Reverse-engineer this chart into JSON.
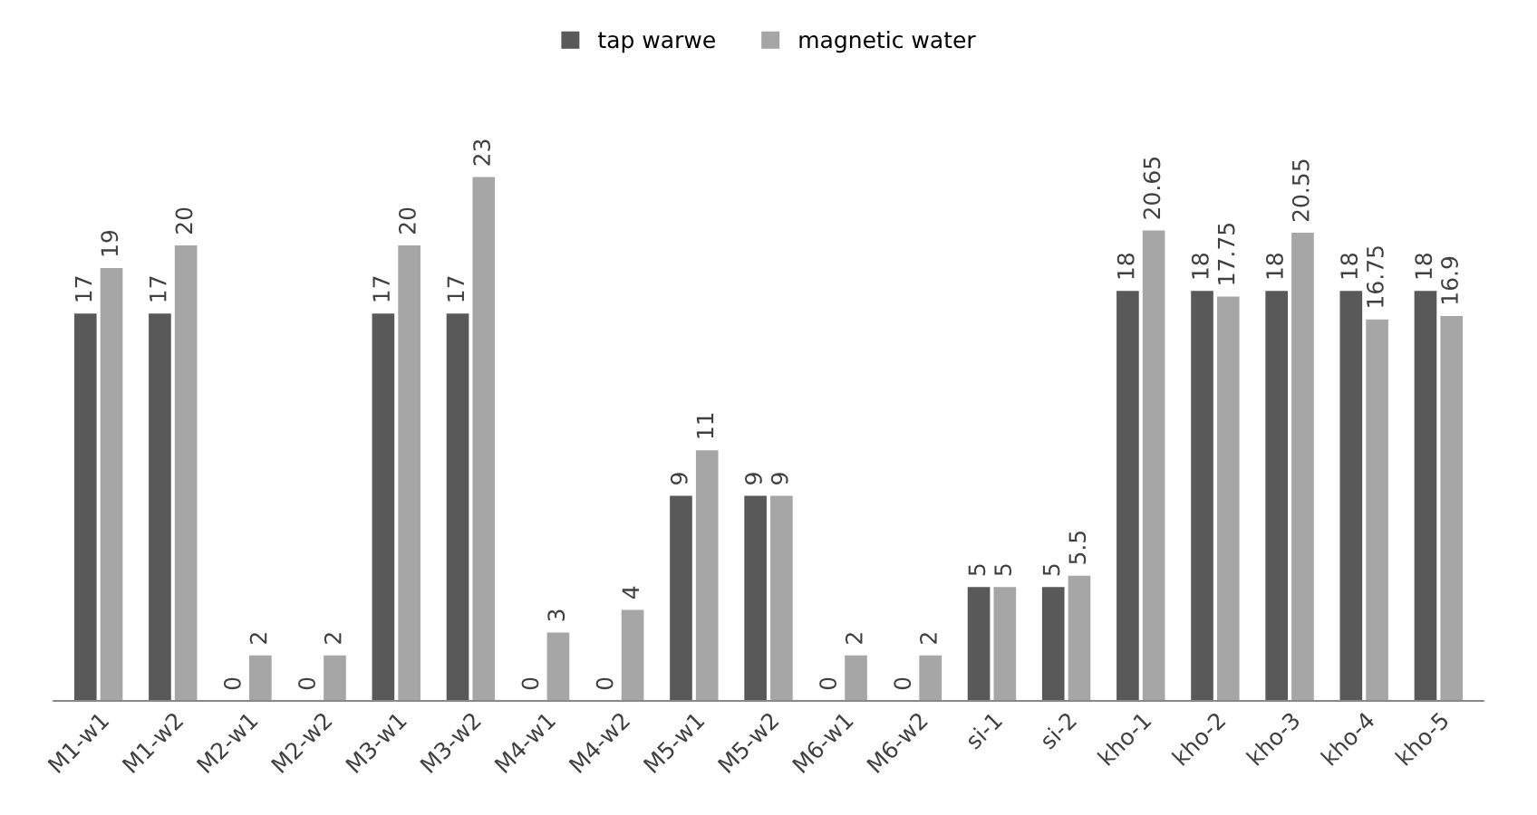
{
  "chart_data": {
    "type": "bar",
    "categories": [
      "M1-w1",
      "M1-w2",
      "M2-w1",
      "M2-w2",
      "M3-w1",
      "M3-w2",
      "M4-w1",
      "M4-w2",
      "M5-w1",
      "M5-w2",
      "M6-w1",
      "M6-w2",
      "si-1",
      "si-2",
      "kho-1",
      "kho-2",
      "kho-3",
      "kho-4",
      "kho-5"
    ],
    "series": [
      {
        "name": "tap warwe",
        "color": "#595959",
        "values": [
          17,
          17,
          0,
          0,
          17,
          17,
          0,
          0,
          9,
          9,
          0,
          0,
          5,
          5,
          18,
          18,
          18,
          18,
          18
        ]
      },
      {
        "name": "magnetic water",
        "color": "#a6a6a6",
        "values": [
          19,
          20,
          2,
          2,
          20,
          23,
          3,
          4,
          11,
          9,
          2,
          2,
          5,
          5.5,
          20.65,
          17.75,
          20.55,
          16.75,
          16.9
        ]
      }
    ],
    "tick_labels": "x",
    "data_labels": true,
    "legend": "top",
    "grid": false
  }
}
